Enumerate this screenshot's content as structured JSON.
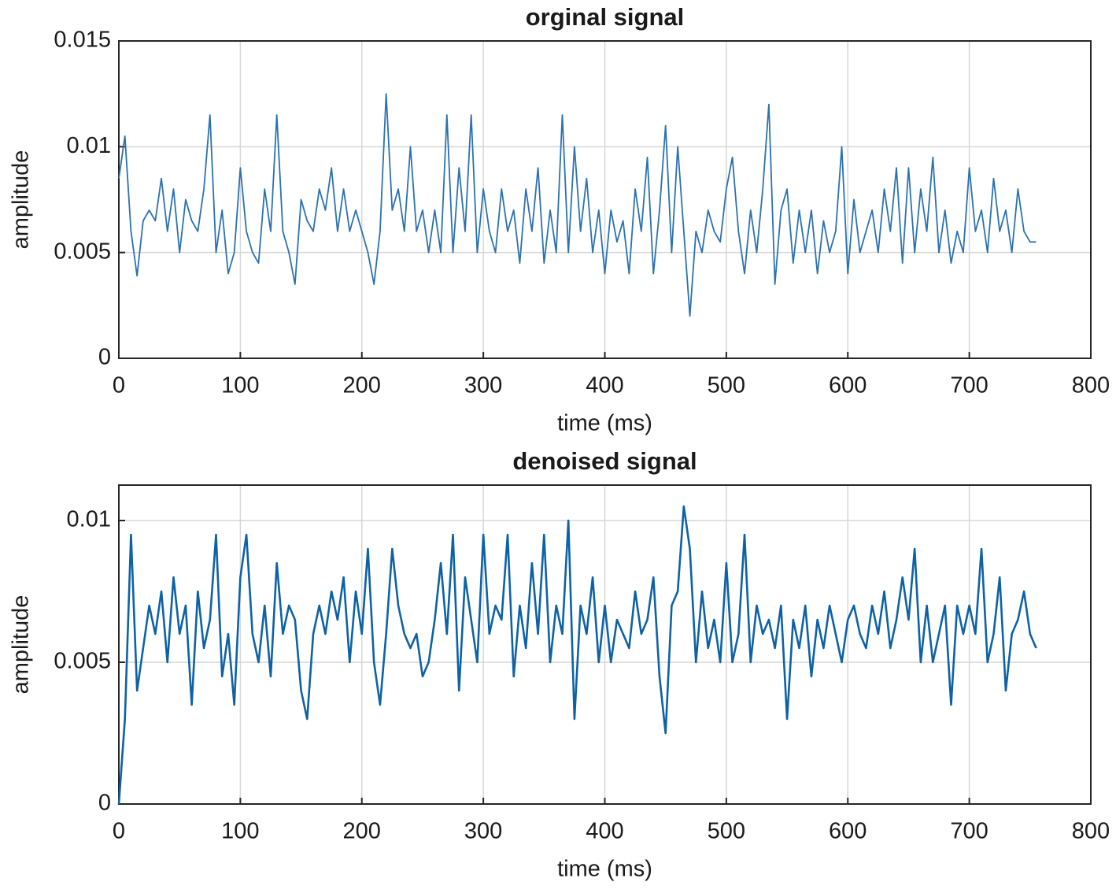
{
  "chart_data": [
    {
      "type": "line",
      "title": "orginal signal",
      "xlabel": "time (ms)",
      "ylabel": "amplitude",
      "xlim": [
        0,
        800
      ],
      "xticks": [
        0,
        100,
        200,
        300,
        400,
        500,
        600,
        700,
        800
      ],
      "ylim": [
        0,
        0.015
      ],
      "yticks": [
        0,
        0.005,
        0.01,
        0.015
      ],
      "grid": true,
      "x": [
        0,
        5,
        10,
        15,
        20,
        25,
        30,
        35,
        40,
        45,
        50,
        55,
        60,
        65,
        70,
        75,
        80,
        85,
        90,
        95,
        100,
        105,
        110,
        115,
        120,
        125,
        130,
        135,
        140,
        145,
        150,
        155,
        160,
        165,
        170,
        175,
        180,
        185,
        190,
        195,
        200,
        205,
        210,
        215,
        220,
        225,
        230,
        235,
        240,
        245,
        250,
        255,
        260,
        265,
        270,
        275,
        280,
        285,
        290,
        295,
        300,
        305,
        310,
        315,
        320,
        325,
        330,
        335,
        340,
        345,
        350,
        355,
        360,
        365,
        370,
        375,
        380,
        385,
        390,
        395,
        400,
        405,
        410,
        415,
        420,
        425,
        430,
        435,
        440,
        445,
        450,
        455,
        460,
        465,
        470,
        475,
        480,
        485,
        490,
        495,
        500,
        505,
        510,
        515,
        520,
        525,
        530,
        535,
        540,
        545,
        550,
        555,
        560,
        565,
        570,
        575,
        580,
        585,
        590,
        595,
        600,
        605,
        610,
        615,
        620,
        625,
        630,
        635,
        640,
        645,
        650,
        655,
        660,
        665,
        670,
        675,
        680,
        685,
        690,
        695,
        700,
        705,
        710,
        715,
        720,
        725,
        730,
        735,
        740,
        745,
        750,
        755
      ],
      "series": [
        {
          "name": "orginal signal",
          "color": "#2a72b0",
          "values": [
            0.0085,
            0.0105,
            0.006,
            0.0039,
            0.0065,
            0.007,
            0.0065,
            0.0085,
            0.006,
            0.008,
            0.005,
            0.0075,
            0.0065,
            0.006,
            0.008,
            0.0115,
            0.005,
            0.007,
            0.004,
            0.005,
            0.009,
            0.006,
            0.005,
            0.0045,
            0.008,
            0.006,
            0.0115,
            0.006,
            0.005,
            0.0035,
            0.0075,
            0.0065,
            0.006,
            0.008,
            0.007,
            0.009,
            0.006,
            0.008,
            0.006,
            0.007,
            0.006,
            0.005,
            0.0035,
            0.006,
            0.0125,
            0.007,
            0.008,
            0.006,
            0.01,
            0.006,
            0.007,
            0.005,
            0.007,
            0.005,
            0.0115,
            0.005,
            0.009,
            0.006,
            0.0115,
            0.005,
            0.008,
            0.006,
            0.005,
            0.008,
            0.006,
            0.007,
            0.0045,
            0.008,
            0.006,
            0.009,
            0.0045,
            0.007,
            0.005,
            0.0115,
            0.005,
            0.01,
            0.006,
            0.0085,
            0.005,
            0.007,
            0.004,
            0.007,
            0.0055,
            0.0065,
            0.004,
            0.008,
            0.006,
            0.0095,
            0.004,
            0.007,
            0.011,
            0.005,
            0.01,
            0.006,
            0.002,
            0.006,
            0.005,
            0.007,
            0.006,
            0.0055,
            0.008,
            0.0095,
            0.006,
            0.004,
            0.007,
            0.005,
            0.008,
            0.012,
            0.0035,
            0.007,
            0.008,
            0.0045,
            0.007,
            0.005,
            0.007,
            0.004,
            0.0065,
            0.005,
            0.006,
            0.01,
            0.004,
            0.0075,
            0.005,
            0.006,
            0.007,
            0.005,
            0.008,
            0.006,
            0.009,
            0.0045,
            0.009,
            0.005,
            0.008,
            0.006,
            0.0095,
            0.005,
            0.007,
            0.0045,
            0.006,
            0.005,
            0.009,
            0.006,
            0.007,
            0.005,
            0.0085,
            0.006,
            0.007,
            0.005,
            0.008,
            0.006,
            0.0055,
            0.0055
          ]
        }
      ]
    },
    {
      "type": "line",
      "title": "denoised signal",
      "xlabel": "time (ms)",
      "ylabel": "amplitude",
      "xlim": [
        0,
        800
      ],
      "xticks": [
        0,
        100,
        200,
        300,
        400,
        500,
        600,
        700,
        800
      ],
      "ylim": [
        0,
        0.01125
      ],
      "yticks": [
        0,
        0.005,
        0.01
      ],
      "grid": true,
      "x": [
        0,
        5,
        10,
        15,
        20,
        25,
        30,
        35,
        40,
        45,
        50,
        55,
        60,
        65,
        70,
        75,
        80,
        85,
        90,
        95,
        100,
        105,
        110,
        115,
        120,
        125,
        130,
        135,
        140,
        145,
        150,
        155,
        160,
        165,
        170,
        175,
        180,
        185,
        190,
        195,
        200,
        205,
        210,
        215,
        220,
        225,
        230,
        235,
        240,
        245,
        250,
        255,
        260,
        265,
        270,
        275,
        280,
        285,
        290,
        295,
        300,
        305,
        310,
        315,
        320,
        325,
        330,
        335,
        340,
        345,
        350,
        355,
        360,
        365,
        370,
        375,
        380,
        385,
        390,
        395,
        400,
        405,
        410,
        415,
        420,
        425,
        430,
        435,
        440,
        445,
        450,
        455,
        460,
        465,
        470,
        475,
        480,
        485,
        490,
        495,
        500,
        505,
        510,
        515,
        520,
        525,
        530,
        535,
        540,
        545,
        550,
        555,
        560,
        565,
        570,
        575,
        580,
        585,
        590,
        595,
        600,
        605,
        610,
        615,
        620,
        625,
        630,
        635,
        640,
        645,
        650,
        655,
        660,
        665,
        670,
        675,
        680,
        685,
        690,
        695,
        700,
        705,
        710,
        715,
        720,
        725,
        730,
        735,
        740,
        745,
        750,
        755
      ],
      "series": [
        {
          "name": "denoised signal",
          "color": "#0d62a6",
          "values": [
            0,
            0.003,
            0.0095,
            0.004,
            0.0055,
            0.007,
            0.006,
            0.0075,
            0.005,
            0.008,
            0.006,
            0.007,
            0.0035,
            0.0075,
            0.0055,
            0.0065,
            0.0095,
            0.0045,
            0.006,
            0.0035,
            0.008,
            0.0095,
            0.006,
            0.005,
            0.007,
            0.0045,
            0.0085,
            0.006,
            0.007,
            0.0065,
            0.004,
            0.003,
            0.006,
            0.007,
            0.006,
            0.0075,
            0.0065,
            0.008,
            0.005,
            0.0075,
            0.006,
            0.009,
            0.005,
            0.0035,
            0.006,
            0.009,
            0.007,
            0.006,
            0.0055,
            0.006,
            0.0045,
            0.005,
            0.0065,
            0.0085,
            0.006,
            0.0095,
            0.004,
            0.008,
            0.0065,
            0.005,
            0.0095,
            0.006,
            0.007,
            0.0065,
            0.0095,
            0.0045,
            0.007,
            0.0055,
            0.0085,
            0.006,
            0.0095,
            0.005,
            0.007,
            0.006,
            0.01,
            0.003,
            0.007,
            0.006,
            0.008,
            0.005,
            0.007,
            0.005,
            0.0065,
            0.006,
            0.0055,
            0.0075,
            0.006,
            0.0065,
            0.008,
            0.0045,
            0.0025,
            0.007,
            0.0075,
            0.0105,
            0.009,
            0.005,
            0.0075,
            0.0055,
            0.0065,
            0.005,
            0.0085,
            0.005,
            0.006,
            0.0095,
            0.005,
            0.007,
            0.006,
            0.0065,
            0.0055,
            0.007,
            0.003,
            0.0065,
            0.0055,
            0.007,
            0.0045,
            0.0065,
            0.0055,
            0.007,
            0.006,
            0.005,
            0.0065,
            0.007,
            0.006,
            0.0055,
            0.007,
            0.006,
            0.0075,
            0.0055,
            0.0065,
            0.008,
            0.0065,
            0.009,
            0.005,
            0.007,
            0.005,
            0.006,
            0.007,
            0.0035,
            0.007,
            0.006,
            0.007,
            0.006,
            0.009,
            0.005,
            0.006,
            0.008,
            0.004,
            0.006,
            0.0065,
            0.0075,
            0.006,
            0.0055
          ]
        }
      ]
    }
  ]
}
